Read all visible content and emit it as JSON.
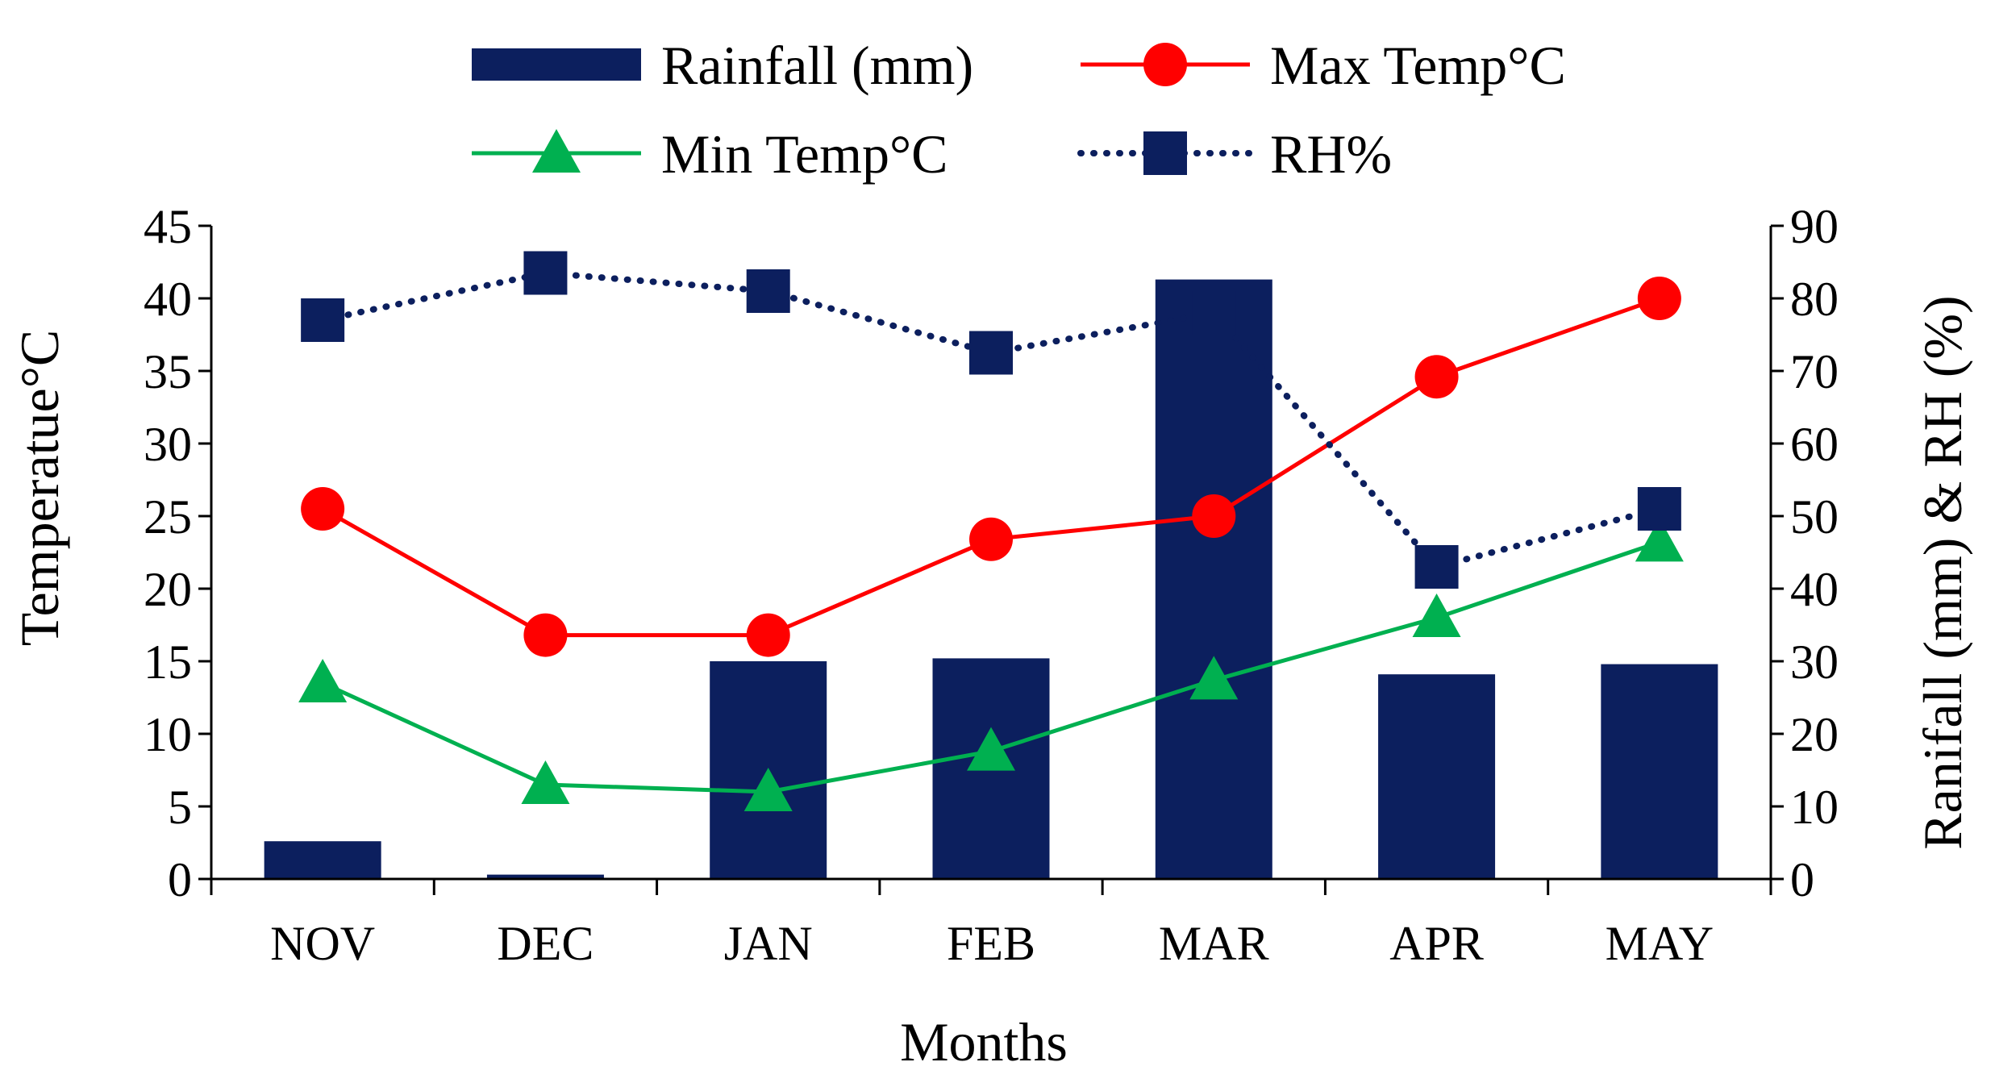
{
  "colors": {
    "rainfall": "#0c1f5e",
    "max_temp": "#ff0000",
    "min_temp": "#00b050",
    "rh": "#0c1f5e",
    "axis": "#000000"
  },
  "chart_data": {
    "type": "bar",
    "categories": [
      "NOV",
      "DEC",
      "JAN",
      "FEB",
      "MAR",
      "APR",
      "MAY"
    ],
    "xlabel": "Months",
    "ylabel": "Temperatue°C",
    "y2label": "Ranifall (mm) & RH (%)",
    "ylim": [
      0,
      45
    ],
    "y2lim": [
      0,
      90
    ],
    "yticks": [
      "0",
      "5",
      "10",
      "15",
      "20",
      "25",
      "30",
      "35",
      "40",
      "45"
    ],
    "y2ticks": [
      "0",
      "10",
      "20",
      "30",
      "40",
      "50",
      "60",
      "70",
      "80",
      "90"
    ],
    "legend_position": "top",
    "grid": false,
    "series": [
      {
        "name": "Rainfall (mm)",
        "kind": "bar",
        "axis": "right",
        "marker": "none",
        "values": [
          5.2,
          0.6,
          30.0,
          30.4,
          82.6,
          28.2,
          29.6
        ]
      },
      {
        "name": "Max Temp°C",
        "kind": "line",
        "axis": "left",
        "marker": "circle",
        "style": "solid",
        "values": [
          25.5,
          16.8,
          16.8,
          23.4,
          25.0,
          34.6,
          40.0
        ]
      },
      {
        "name": "Min Temp°C",
        "kind": "line",
        "axis": "left",
        "marker": "triangle",
        "style": "solid",
        "values": [
          13.5,
          6.5,
          6.0,
          8.8,
          13.7,
          18.0,
          23.2
        ]
      },
      {
        "name": "RH%",
        "kind": "line",
        "axis": "right",
        "marker": "square",
        "style": "dotted",
        "values": [
          77.0,
          83.5,
          81.0,
          72.5,
          78.0,
          43.0,
          51.0
        ]
      }
    ]
  }
}
